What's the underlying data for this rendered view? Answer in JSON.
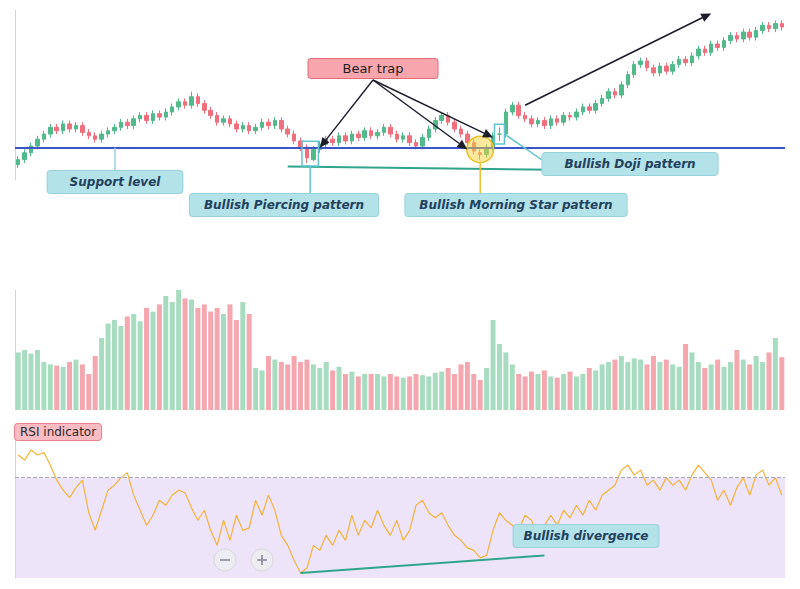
{
  "chart_data": [
    {
      "type": "candlestick",
      "categories": [
        null,
        null,
        null,
        null,
        null,
        null,
        null,
        null,
        null,
        null,
        null,
        null,
        null,
        null,
        null,
        null,
        null,
        null,
        null,
        null,
        null,
        null,
        null,
        null,
        null,
        null,
        null,
        null,
        null,
        null,
        null,
        null,
        null,
        null,
        null,
        null,
        null,
        null,
        null,
        null,
        null,
        null,
        null,
        null,
        null,
        null,
        null,
        null,
        null,
        null,
        null,
        null,
        null,
        null,
        null,
        null,
        null,
        null,
        null,
        null,
        null,
        null,
        null,
        null,
        null,
        null,
        null,
        null,
        null,
        null,
        null,
        null,
        null,
        null,
        null,
        null,
        null,
        null,
        null,
        null,
        null,
        null,
        null,
        null,
        null,
        null,
        null,
        null,
        null,
        null,
        null,
        null,
        null,
        null,
        null,
        null,
        null,
        null,
        null,
        null,
        null,
        null,
        null,
        null,
        null,
        null,
        null,
        null,
        null,
        null,
        null,
        null,
        null,
        null,
        null,
        null,
        null,
        null,
        null,
        null
      ],
      "open": [
        9,
        12,
        16,
        20,
        24,
        27,
        31,
        29,
        33,
        30,
        32,
        28,
        26,
        24,
        27,
        29,
        31,
        34,
        32,
        36,
        38,
        35,
        39,
        37,
        40,
        43,
        46,
        44,
        49,
        45,
        41,
        38,
        34,
        36,
        33,
        30,
        32,
        29,
        31,
        34,
        32,
        35,
        30,
        27,
        23,
        19,
        12,
        18,
        21,
        24,
        22,
        26,
        23,
        27,
        25,
        29,
        26,
        28,
        31,
        27,
        24,
        26,
        22,
        20,
        25,
        30,
        35,
        38,
        34,
        30,
        27,
        22,
        16,
        15,
        19,
        27,
        27,
        40,
        44,
        38,
        36,
        33,
        35,
        32,
        36,
        34,
        38,
        37,
        40,
        43,
        41,
        45,
        48,
        52,
        50,
        56,
        62,
        68,
        70,
        66,
        63,
        67,
        64,
        68,
        71,
        69,
        73,
        77,
        75,
        80,
        78,
        82,
        85,
        83,
        87,
        84,
        88,
        91,
        89,
        92
      ],
      "high": [
        14,
        18,
        22,
        26,
        29,
        33,
        33,
        35,
        35,
        34,
        34,
        30,
        28,
        29,
        31,
        33,
        36,
        36,
        38,
        40,
        40,
        41,
        41,
        42,
        45,
        48,
        48,
        52,
        51,
        47,
        43,
        40,
        38,
        38,
        35,
        34,
        34,
        33,
        36,
        36,
        37,
        37,
        32,
        29,
        25,
        21,
        20,
        23,
        26,
        26,
        28,
        28,
        29,
        29,
        31,
        31,
        30,
        33,
        33,
        29,
        28,
        28,
        24,
        27,
        32,
        37,
        40,
        40,
        36,
        32,
        29,
        24,
        18,
        21,
        28,
        31,
        42,
        46,
        46,
        40,
        38,
        37,
        37,
        38,
        38,
        40,
        40,
        42,
        45,
        45,
        47,
        50,
        54,
        54,
        58,
        64,
        70,
        72,
        72,
        68,
        69,
        69,
        70,
        73,
        73,
        75,
        79,
        79,
        82,
        82,
        84,
        87,
        87,
        89,
        89,
        90,
        93,
        93,
        94,
        94
      ],
      "low": [
        7,
        10,
        14,
        18,
        22,
        25,
        27,
        27,
        28,
        28,
        26,
        24,
        22,
        22,
        25,
        27,
        29,
        30,
        30,
        34,
        33,
        33,
        35,
        35,
        38,
        41,
        42,
        42,
        43,
        39,
        36,
        32,
        32,
        31,
        28,
        28,
        27,
        27,
        29,
        30,
        30,
        28,
        25,
        21,
        17,
        10,
        11,
        16,
        19,
        20,
        20,
        21,
        21,
        23,
        23,
        24,
        24,
        26,
        25,
        22,
        22,
        20,
        18,
        18,
        23,
        28,
        33,
        32,
        28,
        25,
        20,
        15,
        12,
        13,
        17,
        23,
        25,
        38,
        36,
        34,
        31,
        31,
        30,
        30,
        32,
        32,
        35,
        35,
        38,
        39,
        39,
        43,
        46,
        48,
        48,
        54,
        60,
        66,
        64,
        61,
        61,
        62,
        62,
        66,
        67,
        67,
        71,
        73,
        73,
        76,
        76,
        80,
        81,
        81,
        82,
        82,
        86,
        87,
        87,
        88
      ],
      "close": [
        12,
        16,
        20,
        24,
        27,
        31,
        29,
        33,
        30,
        32,
        28,
        26,
        24,
        27,
        29,
        31,
        34,
        32,
        36,
        38,
        35,
        39,
        37,
        40,
        43,
        46,
        44,
        49,
        45,
        41,
        38,
        34,
        36,
        33,
        30,
        32,
        29,
        31,
        34,
        32,
        35,
        30,
        27,
        23,
        19,
        13,
        18,
        21,
        24,
        22,
        26,
        23,
        27,
        25,
        29,
        26,
        28,
        31,
        27,
        24,
        26,
        22,
        20,
        25,
        30,
        35,
        38,
        34,
        30,
        27,
        22,
        17,
        15,
        19,
        26,
        27,
        40,
        44,
        38,
        36,
        33,
        35,
        32,
        36,
        34,
        38,
        37,
        40,
        43,
        41,
        45,
        48,
        52,
        50,
        56,
        62,
        68,
        70,
        66,
        63,
        67,
        64,
        68,
        71,
        69,
        73,
        77,
        75,
        80,
        78,
        82,
        85,
        83,
        87,
        84,
        88,
        91,
        89,
        92,
        90
      ],
      "ylim": [
        0,
        100
      ],
      "tick_labels": false,
      "grid": false,
      "color": {
        "up": "#52b98a",
        "down": "#ef6f7c"
      },
      "support": {
        "value": 19,
        "label": "Support level",
        "color": "#3b55c4"
      },
      "trend_lines": [
        {
          "from": [
            42,
            8
          ],
          "to": [
            83,
            6
          ],
          "color": "#2fa58c"
        }
      ],
      "arrows": [
        {
          "from": [
            79,
            44
          ],
          "to": [
            108,
            98
          ],
          "color": "#1c1c2a"
        }
      ],
      "bear_trap": {
        "label": "Bear trap",
        "targets": [
          [
            47,
            19
          ],
          [
            70,
            18
          ],
          [
            74,
            25
          ]
        ]
      },
      "patterns": [
        {
          "label": "Bullish Piercing pattern",
          "candles": [
            45,
            46
          ],
          "marker": "box",
          "color": "#62c3d0"
        },
        {
          "label": "Bullish Morning Star pattern",
          "candles": [
            71,
            73
          ],
          "marker": "ellipse",
          "color": "#e9c02a"
        },
        {
          "label": "Bullish Doji pattern",
          "candles": [
            75,
            75
          ],
          "marker": "box",
          "color": "#62c3d0"
        }
      ]
    },
    {
      "type": "bar",
      "categories": [
        null,
        null,
        null,
        null,
        null,
        null,
        null,
        null,
        null,
        null,
        null,
        null,
        null,
        null,
        null,
        null,
        null,
        null,
        null,
        null,
        null,
        null,
        null,
        null,
        null,
        null,
        null,
        null,
        null,
        null,
        null,
        null,
        null,
        null,
        null,
        null,
        null,
        null,
        null,
        null,
        null,
        null,
        null,
        null,
        null,
        null,
        null,
        null,
        null,
        null,
        null,
        null,
        null,
        null,
        null,
        null,
        null,
        null,
        null,
        null,
        null,
        null,
        null,
        null,
        null,
        null,
        null,
        null,
        null,
        null,
        null,
        null,
        null,
        null,
        null,
        null,
        null,
        null,
        null,
        null,
        null,
        null,
        null,
        null,
        null,
        null,
        null,
        null,
        null,
        null,
        null,
        null,
        null,
        null,
        null,
        null,
        null,
        null,
        null,
        null,
        null,
        null,
        null,
        null,
        null,
        null,
        null,
        null,
        null,
        null,
        null,
        null,
        null,
        null,
        null,
        null,
        null,
        null,
        null,
        null
      ],
      "values": [
        48,
        50,
        47,
        50,
        40,
        38,
        37,
        36,
        40,
        42,
        38,
        30,
        45,
        60,
        72,
        75,
        70,
        78,
        80,
        74,
        85,
        82,
        88,
        95,
        90,
        100,
        93,
        92,
        85,
        88,
        82,
        85,
        80,
        88,
        75,
        90,
        80,
        35,
        33,
        45,
        42,
        40,
        38,
        45,
        40,
        42,
        38,
        35,
        40,
        33,
        36,
        30,
        32,
        28,
        30,
        30,
        30,
        28,
        30,
        28,
        27,
        28,
        30,
        29,
        28,
        31,
        32,
        35,
        30,
        38,
        40,
        30,
        25,
        35,
        75,
        55,
        48,
        38,
        30,
        28,
        32,
        30,
        33,
        28,
        27,
        30,
        32,
        28,
        30,
        35,
        33,
        38,
        40,
        42,
        45,
        40,
        43,
        42,
        38,
        45,
        40,
        42,
        38,
        36,
        55,
        48,
        40,
        35,
        38,
        42,
        36,
        40,
        50,
        42,
        38,
        45,
        40,
        48,
        60,
        44
      ],
      "ylim": [
        0,
        100
      ],
      "tick_labels": false,
      "grid": false,
      "color": {
        "up": "#a7dcc0",
        "down": "#f5a7b0"
      }
    },
    {
      "type": "line",
      "title": "RSI indicator",
      "categories": [
        null,
        null,
        null,
        null,
        null,
        null,
        null,
        null,
        null,
        null,
        null,
        null,
        null,
        null,
        null,
        null,
        null,
        null,
        null,
        null,
        null,
        null,
        null,
        null,
        null,
        null,
        null,
        null,
        null,
        null,
        null,
        null,
        null,
        null,
        null,
        null,
        null,
        null,
        null,
        null,
        null,
        null,
        null,
        null,
        null,
        null,
        null,
        null,
        null,
        null,
        null,
        null,
        null,
        null,
        null,
        null,
        null,
        null,
        null,
        null,
        null,
        null,
        null,
        null,
        null,
        null,
        null,
        null,
        null,
        null,
        null,
        null,
        null,
        null,
        null,
        null,
        null,
        null,
        null,
        null,
        null,
        null,
        null,
        null,
        null,
        null,
        null,
        null,
        null,
        null,
        null,
        null,
        null,
        null,
        null,
        null,
        null,
        null,
        null,
        null,
        null,
        null,
        null,
        null,
        null,
        null,
        null,
        null,
        null,
        null,
        null,
        null,
        null,
        null,
        null,
        null,
        null,
        null,
        null,
        null
      ],
      "values": [
        79,
        77,
        81,
        79,
        80,
        75,
        69,
        65,
        62,
        66,
        69,
        56,
        49,
        57,
        65,
        67,
        70,
        72,
        63,
        57,
        51,
        55,
        61,
        59,
        63,
        65,
        64,
        58,
        53,
        57,
        49,
        43,
        53,
        45,
        55,
        49,
        50,
        61,
        55,
        63,
        57,
        47,
        43,
        37,
        32,
        34,
        43,
        41,
        47,
        43,
        49,
        45,
        55,
        47,
        53,
        50,
        57,
        51,
        47,
        53,
        45,
        49,
        59,
        61,
        56,
        54,
        56,
        51,
        47,
        45,
        42,
        41,
        38,
        39,
        49,
        56,
        53,
        51,
        49,
        55,
        53,
        47,
        51,
        55,
        51,
        57,
        54,
        59,
        55,
        61,
        57,
        63,
        65,
        67,
        73,
        75,
        71,
        73,
        67,
        69,
        65,
        70,
        67,
        69,
        65,
        71,
        75,
        72,
        69,
        61,
        65,
        59,
        66,
        70,
        63,
        71,
        73,
        67,
        70,
        63
      ],
      "ylim": [
        30,
        85
      ],
      "tick_labels": false,
      "grid": false,
      "color": "#f2b33d",
      "level": 70,
      "divergence": {
        "label": "Bullish divergence",
        "from": [
          44,
          32
        ],
        "to": [
          82,
          39
        ],
        "color": "#2fa58c"
      }
    }
  ]
}
